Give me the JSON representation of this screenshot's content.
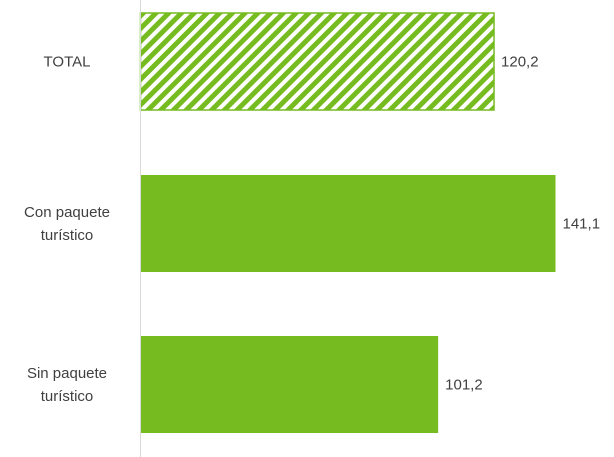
{
  "chart_data": {
    "type": "bar",
    "orientation": "horizontal",
    "categories": [
      [
        "TOTAL"
      ],
      [
        "Con paquete",
        "turístico"
      ],
      [
        "Sin paquete",
        "turístico"
      ]
    ],
    "values": [
      120.2,
      141.1,
      101.2
    ],
    "value_labels": [
      "120,2",
      "141,1",
      "101,2"
    ],
    "patterns": [
      "hatched",
      "solid",
      "solid"
    ],
    "bar_color": "#76BC21",
    "axis_color": "#D9D9D9",
    "text_color": "#404040",
    "title": "",
    "xlabel": "",
    "ylabel": "",
    "xlim": [
      0,
      141.1
    ],
    "grid": false,
    "legend": "none"
  }
}
